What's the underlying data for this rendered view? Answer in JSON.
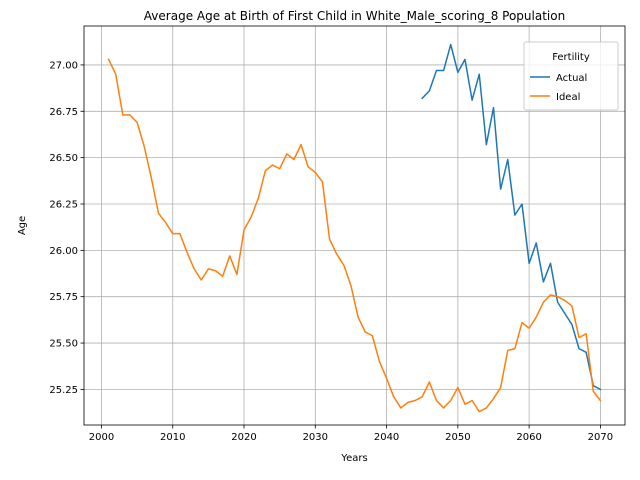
{
  "chart_data": {
    "type": "line",
    "title": "Average Age at Birth of First Child in White_Male_scoring_8 Population",
    "xlabel": "Years",
    "ylabel": "Age",
    "xlim": [
      1997.55,
      2073.45
    ],
    "ylim": [
      25.058,
      27.21
    ],
    "xticks": [
      2000,
      2010,
      2020,
      2030,
      2040,
      2050,
      2060,
      2070
    ],
    "yticks": [
      25.25,
      25.5,
      25.75,
      26.0,
      26.25,
      26.5,
      26.75,
      27.0
    ],
    "xtick_labels": [
      "2000",
      "2010",
      "2020",
      "2030",
      "2040",
      "2050",
      "2060",
      "2070"
    ],
    "ytick_labels": [
      "25.25",
      "25.50",
      "25.75",
      "26.00",
      "26.25",
      "26.50",
      "26.75",
      "27.00"
    ],
    "grid": true,
    "legend": {
      "title": "Fertility",
      "position": "top-right"
    },
    "series": [
      {
        "name": "Actual",
        "color": "#1f77b4",
        "x": [
          2045,
          2046,
          2047,
          2048,
          2049,
          2050,
          2051,
          2052,
          2053,
          2054,
          2055,
          2056,
          2057,
          2058,
          2059,
          2060,
          2061,
          2062,
          2063,
          2064,
          2065,
          2066,
          2067,
          2068,
          2069,
          2070
        ],
        "y": [
          26.82,
          26.86,
          26.97,
          26.97,
          27.11,
          26.96,
          27.03,
          26.81,
          26.95,
          26.57,
          26.77,
          26.33,
          26.49,
          26.19,
          26.25,
          25.93,
          26.04,
          25.83,
          25.93,
          25.72,
          25.66,
          25.6,
          25.47,
          25.45,
          25.27,
          25.25
        ]
      },
      {
        "name": "Ideal",
        "color": "#ff7f0e",
        "x": [
          2001,
          2002,
          2003,
          2004,
          2005,
          2006,
          2007,
          2008,
          2009,
          2010,
          2011,
          2012,
          2013,
          2014,
          2015,
          2016,
          2017,
          2018,
          2019,
          2020,
          2021,
          2022,
          2023,
          2024,
          2025,
          2026,
          2027,
          2028,
          2029,
          2030,
          2031,
          2032,
          2033,
          2034,
          2035,
          2036,
          2037,
          2038,
          2039,
          2040,
          2041,
          2042,
          2043,
          2044,
          2045,
          2046,
          2047,
          2048,
          2049,
          2050,
          2051,
          2052,
          2053,
          2054,
          2055,
          2056,
          2057,
          2058,
          2059,
          2060,
          2061,
          2062,
          2063,
          2064,
          2065,
          2066,
          2067,
          2068,
          2069,
          2070
        ],
        "y": [
          27.03,
          26.95,
          26.73,
          26.73,
          26.69,
          26.56,
          26.39,
          26.2,
          26.15,
          26.09,
          26.09,
          25.99,
          25.9,
          25.84,
          25.9,
          25.89,
          25.86,
          25.97,
          25.87,
          26.11,
          26.18,
          26.28,
          26.43,
          26.46,
          26.44,
          26.52,
          26.49,
          26.57,
          26.45,
          26.42,
          26.37,
          26.06,
          25.98,
          25.92,
          25.81,
          25.64,
          25.56,
          25.54,
          25.4,
          25.31,
          25.21,
          25.15,
          25.18,
          25.19,
          25.21,
          25.29,
          25.19,
          25.15,
          25.19,
          25.26,
          25.17,
          25.19,
          25.13,
          25.15,
          25.2,
          25.26,
          25.46,
          25.47,
          25.61,
          25.58,
          25.64,
          25.72,
          25.76,
          25.75,
          25.73,
          25.7,
          25.53,
          25.55,
          25.24,
          25.19
        ]
      }
    ]
  }
}
